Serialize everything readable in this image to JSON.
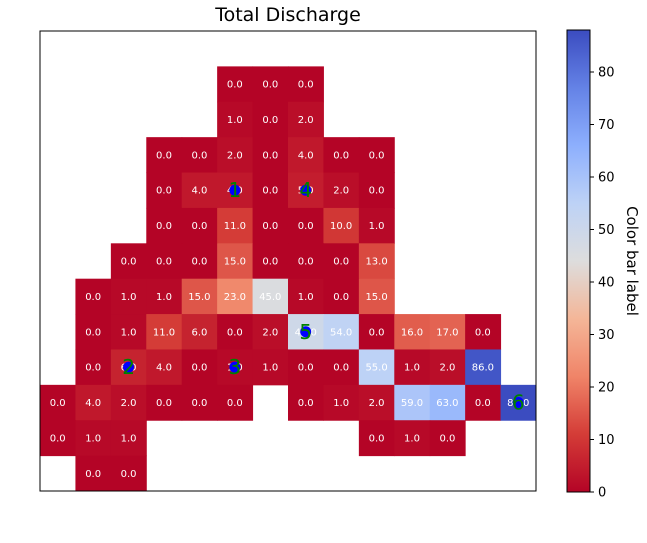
{
  "chart_data": {
    "type": "heatmap",
    "title": "Total Discharge",
    "colorbar_label": "Color bar label",
    "colormap": "coolwarm_r",
    "value_range": [
      0,
      88
    ],
    "colorbar_ticks": [
      "0",
      "10",
      "20",
      "30",
      "40",
      "50",
      "60",
      "70",
      "80"
    ],
    "grid_columns": 14,
    "grid_rows": 13,
    "cells": [
      {
        "row": 1,
        "col": 5,
        "value": 0.0,
        "label": "0.0"
      },
      {
        "row": 1,
        "col": 6,
        "value": 0.0,
        "label": "0.0"
      },
      {
        "row": 1,
        "col": 7,
        "value": 0.0,
        "label": "0.0"
      },
      {
        "row": 2,
        "col": 5,
        "value": 1.0,
        "label": "1.0"
      },
      {
        "row": 2,
        "col": 6,
        "value": 0.0,
        "label": "0.0"
      },
      {
        "row": 2,
        "col": 7,
        "value": 2.0,
        "label": "2.0"
      },
      {
        "row": 3,
        "col": 3,
        "value": 0.0,
        "label": "0.0"
      },
      {
        "row": 3,
        "col": 4,
        "value": 0.0,
        "label": "0.0"
      },
      {
        "row": 3,
        "col": 5,
        "value": 2.0,
        "label": "2.0"
      },
      {
        "row": 3,
        "col": 6,
        "value": 0.0,
        "label": "0.0"
      },
      {
        "row": 3,
        "col": 7,
        "value": 4.0,
        "label": "4.0"
      },
      {
        "row": 3,
        "col": 8,
        "value": 0.0,
        "label": "0.0"
      },
      {
        "row": 3,
        "col": 9,
        "value": 0.0,
        "label": "0.0"
      },
      {
        "row": 4,
        "col": 3,
        "value": 0.0,
        "label": "0.0"
      },
      {
        "row": 4,
        "col": 4,
        "value": 4.0,
        "label": "4.0"
      },
      {
        "row": 4,
        "col": 5,
        "value": 4.0,
        "label": "4.0"
      },
      {
        "row": 4,
        "col": 6,
        "value": 0.0,
        "label": "0.0"
      },
      {
        "row": 4,
        "col": 7,
        "value": 5.0,
        "label": "5.0"
      },
      {
        "row": 4,
        "col": 8,
        "value": 2.0,
        "label": "2.0"
      },
      {
        "row": 4,
        "col": 9,
        "value": 0.0,
        "label": "0.0"
      },
      {
        "row": 5,
        "col": 3,
        "value": 0.0,
        "label": "0.0"
      },
      {
        "row": 5,
        "col": 4,
        "value": 0.0,
        "label": "0.0"
      },
      {
        "row": 5,
        "col": 5,
        "value": 11.0,
        "label": "11.0"
      },
      {
        "row": 5,
        "col": 6,
        "value": 0.0,
        "label": "0.0"
      },
      {
        "row": 5,
        "col": 7,
        "value": 0.0,
        "label": "0.0"
      },
      {
        "row": 5,
        "col": 8,
        "value": 10.0,
        "label": "10.0"
      },
      {
        "row": 5,
        "col": 9,
        "value": 1.0,
        "label": "1.0"
      },
      {
        "row": 6,
        "col": 2,
        "value": 0.0,
        "label": "0.0"
      },
      {
        "row": 6,
        "col": 3,
        "value": 0.0,
        "label": "0.0"
      },
      {
        "row": 6,
        "col": 4,
        "value": 0.0,
        "label": "0.0"
      },
      {
        "row": 6,
        "col": 5,
        "value": 15.0,
        "label": "15.0"
      },
      {
        "row": 6,
        "col": 6,
        "value": 0.0,
        "label": "0.0"
      },
      {
        "row": 6,
        "col": 7,
        "value": 0.0,
        "label": "0.0"
      },
      {
        "row": 6,
        "col": 8,
        "value": 0.0,
        "label": "0.0"
      },
      {
        "row": 6,
        "col": 9,
        "value": 13.0,
        "label": "13.0"
      },
      {
        "row": 7,
        "col": 1,
        "value": 0.0,
        "label": "0.0"
      },
      {
        "row": 7,
        "col": 2,
        "value": 1.0,
        "label": "1.0"
      },
      {
        "row": 7,
        "col": 3,
        "value": 1.0,
        "label": "1.0"
      },
      {
        "row": 7,
        "col": 4,
        "value": 15.0,
        "label": "15.0"
      },
      {
        "row": 7,
        "col": 5,
        "value": 23.0,
        "label": "23.0"
      },
      {
        "row": 7,
        "col": 6,
        "value": 45.0,
        "label": "45.0"
      },
      {
        "row": 7,
        "col": 7,
        "value": 1.0,
        "label": "1.0"
      },
      {
        "row": 7,
        "col": 8,
        "value": 0.0,
        "label": "0.0"
      },
      {
        "row": 7,
        "col": 9,
        "value": 15.0,
        "label": "15.0"
      },
      {
        "row": 8,
        "col": 1,
        "value": 0.0,
        "label": "0.0"
      },
      {
        "row": 8,
        "col": 2,
        "value": 1.0,
        "label": "1.0"
      },
      {
        "row": 8,
        "col": 3,
        "value": 11.0,
        "label": "11.0"
      },
      {
        "row": 8,
        "col": 4,
        "value": 6.0,
        "label": "6.0"
      },
      {
        "row": 8,
        "col": 5,
        "value": 0.0,
        "label": "0.0"
      },
      {
        "row": 8,
        "col": 6,
        "value": 2.0,
        "label": "2.0"
      },
      {
        "row": 8,
        "col": 7,
        "value": 49.0,
        "label": "49.0"
      },
      {
        "row": 8,
        "col": 8,
        "value": 54.0,
        "label": "54.0"
      },
      {
        "row": 8,
        "col": 9,
        "value": 0.0,
        "label": "0.0"
      },
      {
        "row": 8,
        "col": 10,
        "value": 16.0,
        "label": "16.0"
      },
      {
        "row": 8,
        "col": 11,
        "value": 17.0,
        "label": "17.0"
      },
      {
        "row": 8,
        "col": 12,
        "value": 0.0,
        "label": "0.0"
      },
      {
        "row": 9,
        "col": 1,
        "value": 0.0,
        "label": "0.0"
      },
      {
        "row": 9,
        "col": 2,
        "value": 6.0,
        "label": "6.0"
      },
      {
        "row": 9,
        "col": 3,
        "value": 4.0,
        "label": "4.0"
      },
      {
        "row": 9,
        "col": 4,
        "value": 0.0,
        "label": "0.0"
      },
      {
        "row": 9,
        "col": 5,
        "value": 1.0,
        "label": "1.0"
      },
      {
        "row": 9,
        "col": 6,
        "value": 1.0,
        "label": "1.0"
      },
      {
        "row": 9,
        "col": 7,
        "value": 0.0,
        "label": "0.0"
      },
      {
        "row": 9,
        "col": 8,
        "value": 0.0,
        "label": "0.0"
      },
      {
        "row": 9,
        "col": 9,
        "value": 55.0,
        "label": "55.0"
      },
      {
        "row": 9,
        "col": 10,
        "value": 1.0,
        "label": "1.0"
      },
      {
        "row": 9,
        "col": 11,
        "value": 2.0,
        "label": "2.0"
      },
      {
        "row": 9,
        "col": 12,
        "value": 86.0,
        "label": "86.0"
      },
      {
        "row": 10,
        "col": 0,
        "value": 0.0,
        "label": "0.0"
      },
      {
        "row": 10,
        "col": 1,
        "value": 4.0,
        "label": "4.0"
      },
      {
        "row": 10,
        "col": 2,
        "value": 2.0,
        "label": "2.0"
      },
      {
        "row": 10,
        "col": 3,
        "value": 0.0,
        "label": "0.0"
      },
      {
        "row": 10,
        "col": 4,
        "value": 0.0,
        "label": "0.0"
      },
      {
        "row": 10,
        "col": 5,
        "value": 0.0,
        "label": "0.0"
      },
      {
        "row": 10,
        "col": 7,
        "value": 0.0,
        "label": "0.0"
      },
      {
        "row": 10,
        "col": 8,
        "value": 1.0,
        "label": "1.0"
      },
      {
        "row": 10,
        "col": 9,
        "value": 2.0,
        "label": "2.0"
      },
      {
        "row": 10,
        "col": 10,
        "value": 59.0,
        "label": "59.0"
      },
      {
        "row": 10,
        "col": 11,
        "value": 63.0,
        "label": "63.0"
      },
      {
        "row": 10,
        "col": 12,
        "value": 0.0,
        "label": "0.0"
      },
      {
        "row": 10,
        "col": 13,
        "value": 88.0,
        "label": "88.0"
      },
      {
        "row": 11,
        "col": 0,
        "value": 0.0,
        "label": "0.0"
      },
      {
        "row": 11,
        "col": 1,
        "value": 1.0,
        "label": "1.0"
      },
      {
        "row": 11,
        "col": 2,
        "value": 1.0,
        "label": "1.0"
      },
      {
        "row": 11,
        "col": 9,
        "value": 0.0,
        "label": "0.0"
      },
      {
        "row": 11,
        "col": 10,
        "value": 1.0,
        "label": "1.0"
      },
      {
        "row": 11,
        "col": 11,
        "value": 0.0,
        "label": "0.0"
      },
      {
        "row": 12,
        "col": 1,
        "value": 0.0,
        "label": "0.0"
      },
      {
        "row": 12,
        "col": 2,
        "value": 0.0,
        "label": "0.0"
      }
    ],
    "markers": [
      {
        "label": "1",
        "row": 4,
        "col": 5,
        "color": "#0000ff"
      },
      {
        "label": "4",
        "row": 4,
        "col": 7,
        "color": "#0000ff"
      },
      {
        "label": "5",
        "row": 8,
        "col": 7,
        "color": "#0000ff"
      },
      {
        "label": "2",
        "row": 9,
        "col": 2,
        "color": "#0000ff"
      },
      {
        "label": "3",
        "row": 9,
        "col": 5,
        "color": "#0000ff"
      },
      {
        "label": "6",
        "row": 10,
        "col": 13,
        "color": "#0000ff"
      }
    ],
    "marker_label_color": "#008000",
    "cell_label_color": "#ffffff"
  }
}
